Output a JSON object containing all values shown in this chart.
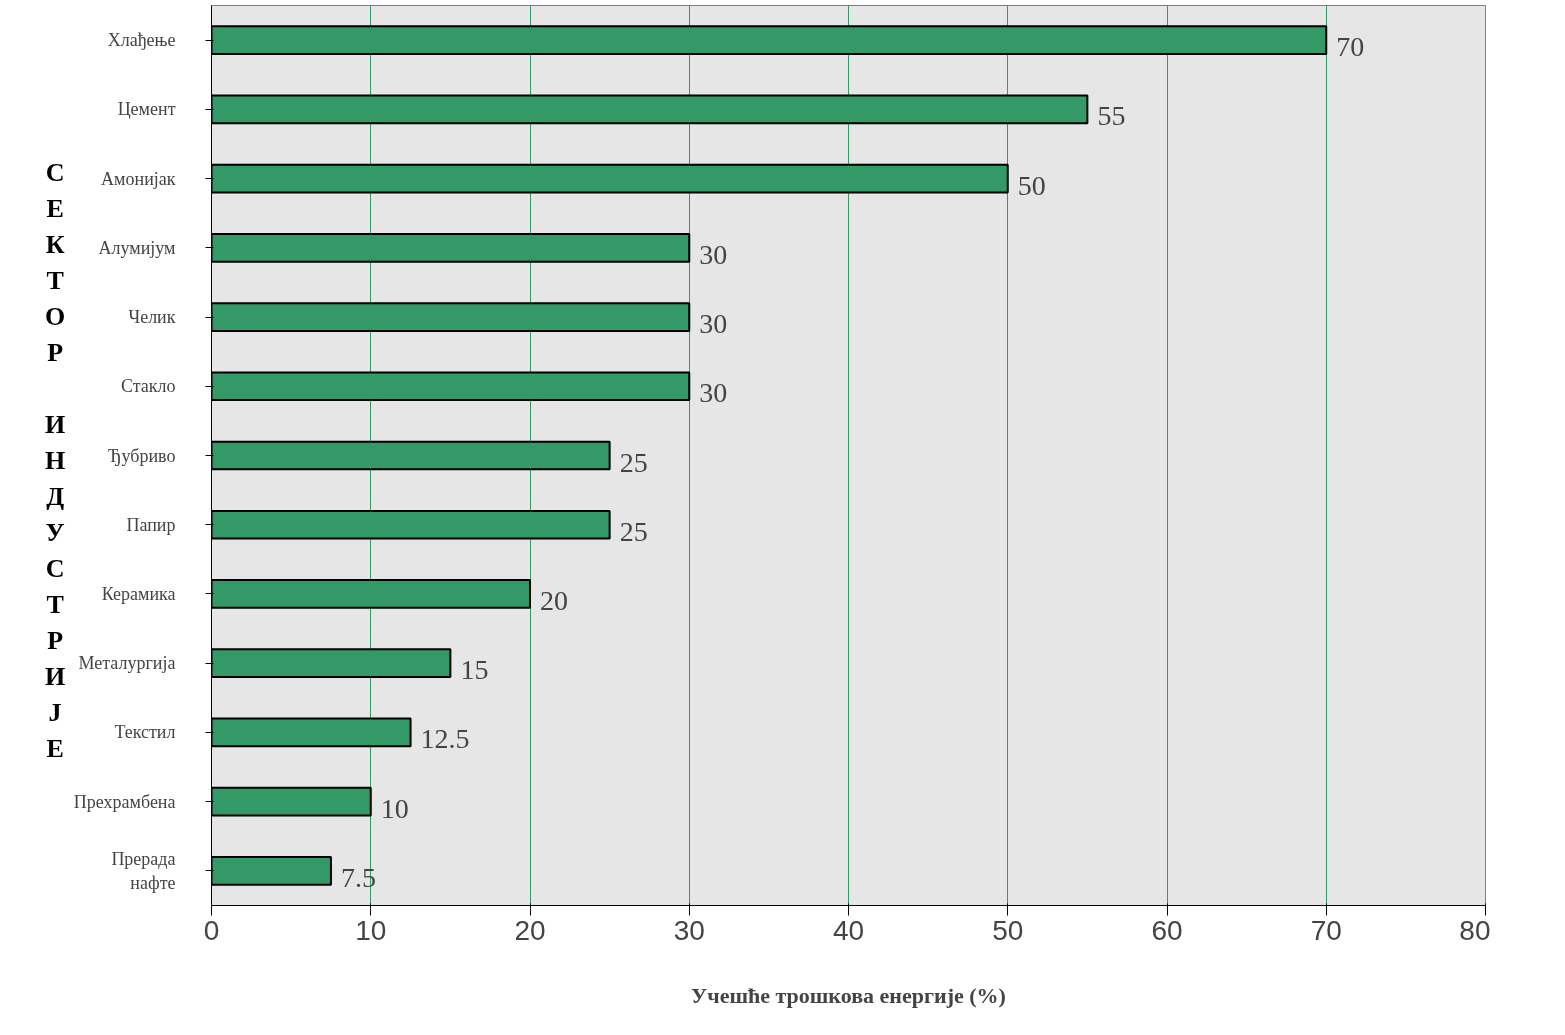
{
  "chart_data": {
    "type": "bar",
    "orientation": "horizontal",
    "xlabel": "Учешће трошкова енергије (%)",
    "ylabel": "СЕКТОР ИНДУСТРИЈЕ",
    "categories": [
      "Хлађење",
      "Цемент",
      "Амонијак",
      "Алумијум",
      "Челик",
      "Стакло",
      "Ђубриво",
      "Папир",
      "Керамика",
      "Металургија",
      "Текстил",
      "Прехрамбена",
      "Прерада\nнафте"
    ],
    "values": [
      70,
      55,
      50,
      30,
      30,
      30,
      25,
      25,
      20,
      15,
      12.5,
      10,
      7.5
    ],
    "color": "#339966",
    "xlim": [
      0,
      80
    ],
    "xticks": [
      0,
      10,
      20,
      30,
      40,
      50,
      60,
      70,
      80
    ],
    "grid": "x",
    "data_labels": true
  }
}
